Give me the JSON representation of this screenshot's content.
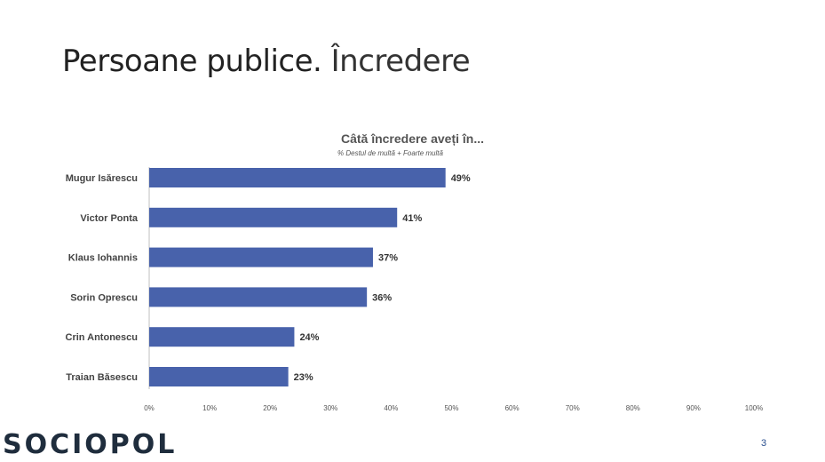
{
  "slide": {
    "title_main": "Persoane publice",
    "title_sep": ".",
    "title_sub": " Încredere",
    "page_number": "3",
    "logo": "SOCIOPOL"
  },
  "chart_data": {
    "type": "bar",
    "orientation": "horizontal",
    "title": "Câtă încredere aveți în...",
    "subtitle": "% Destul de multă + Foarte multă",
    "categories": [
      "Mugur Isărescu",
      "Victor Ponta",
      "Klaus Iohannis",
      "Sorin Oprescu",
      "Crin Antonescu",
      "Traian Băsescu"
    ],
    "values": [
      49,
      41,
      37,
      36,
      24,
      23
    ],
    "value_labels": [
      "49%",
      "41%",
      "37%",
      "36%",
      "24%",
      "23%"
    ],
    "x_ticks": [
      "0%",
      "10%",
      "20%",
      "30%",
      "40%",
      "50%",
      "60%",
      "70%",
      "80%",
      "90%",
      "100%"
    ],
    "xlim": [
      0,
      100
    ],
    "bar_color": "#4862ab",
    "grid": false,
    "legend": "none"
  }
}
